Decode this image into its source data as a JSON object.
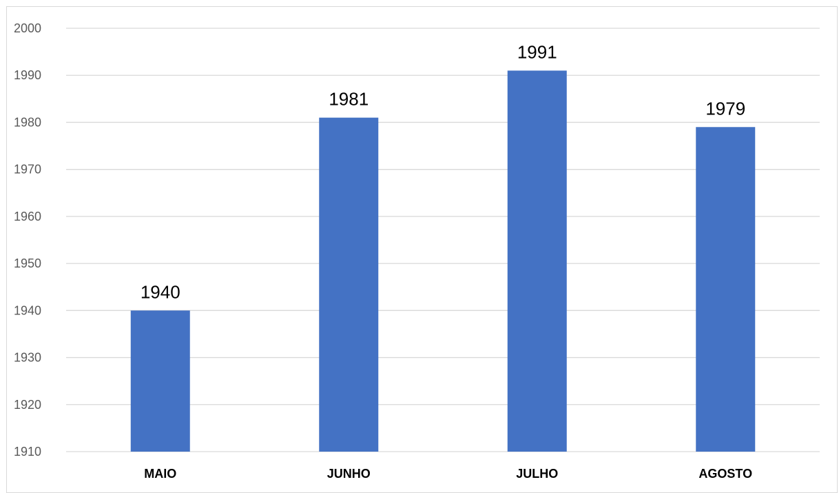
{
  "chart_data": {
    "type": "bar",
    "title": "",
    "xlabel": "",
    "ylabel": "",
    "categories": [
      "MAIO",
      "JUNHO",
      "JULHO",
      "AGOSTO"
    ],
    "values": [
      1940,
      1981,
      1991,
      1979
    ],
    "data_labels": [
      "1940",
      "1981",
      "1991",
      "1979"
    ],
    "ylim": [
      1910,
      2000
    ],
    "yticks": [
      1910,
      1920,
      1930,
      1940,
      1950,
      1960,
      1970,
      1980,
      1990,
      2000
    ],
    "grid": true,
    "legend": "none",
    "bar_color": "#4472C4"
  }
}
